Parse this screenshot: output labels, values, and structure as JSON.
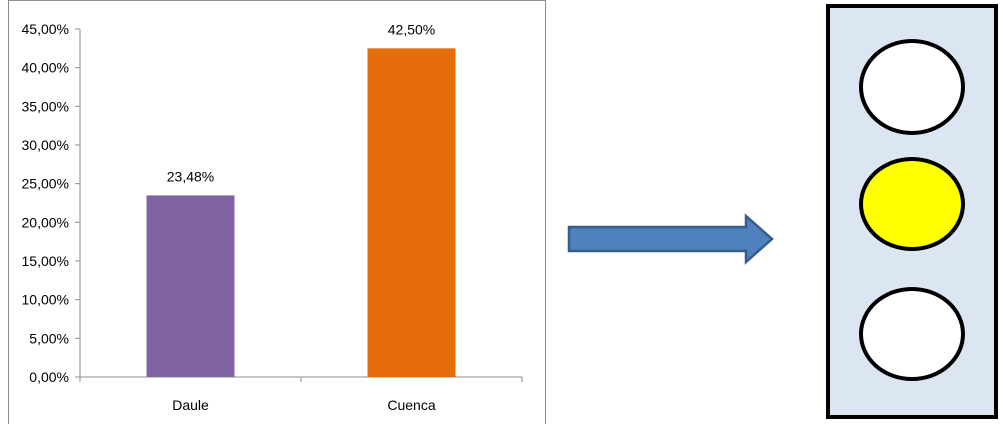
{
  "chart_data": {
    "type": "bar",
    "categories": [
      "Daule",
      "Cuenca"
    ],
    "values": [
      23.48,
      42.5
    ],
    "data_labels": [
      "23,48%",
      "42,50%"
    ],
    "bar_colors": [
      "#8064A2",
      "#E46C0A"
    ],
    "ylim": [
      0,
      45
    ],
    "ytick_values": [
      0,
      5,
      10,
      15,
      20,
      25,
      30,
      35,
      40,
      45
    ],
    "ytick_labels": [
      "0,00%",
      "5,00%",
      "10,00%",
      "15,00%",
      "20,00%",
      "25,00%",
      "30,00%",
      "35,00%",
      "40,00%",
      "45,00%"
    ],
    "grid": false,
    "legend": "none"
  },
  "arrow": {
    "direction": "right",
    "fill": "#4F81BD",
    "stroke": "#385D8A"
  },
  "traffic_light": {
    "panel_color": "#DCE6F2",
    "lights": [
      {
        "name": "top",
        "color": "#FFFFFF"
      },
      {
        "name": "middle",
        "color": "#FFFF00"
      },
      {
        "name": "bottom",
        "color": "#FFFFFF"
      }
    ]
  }
}
